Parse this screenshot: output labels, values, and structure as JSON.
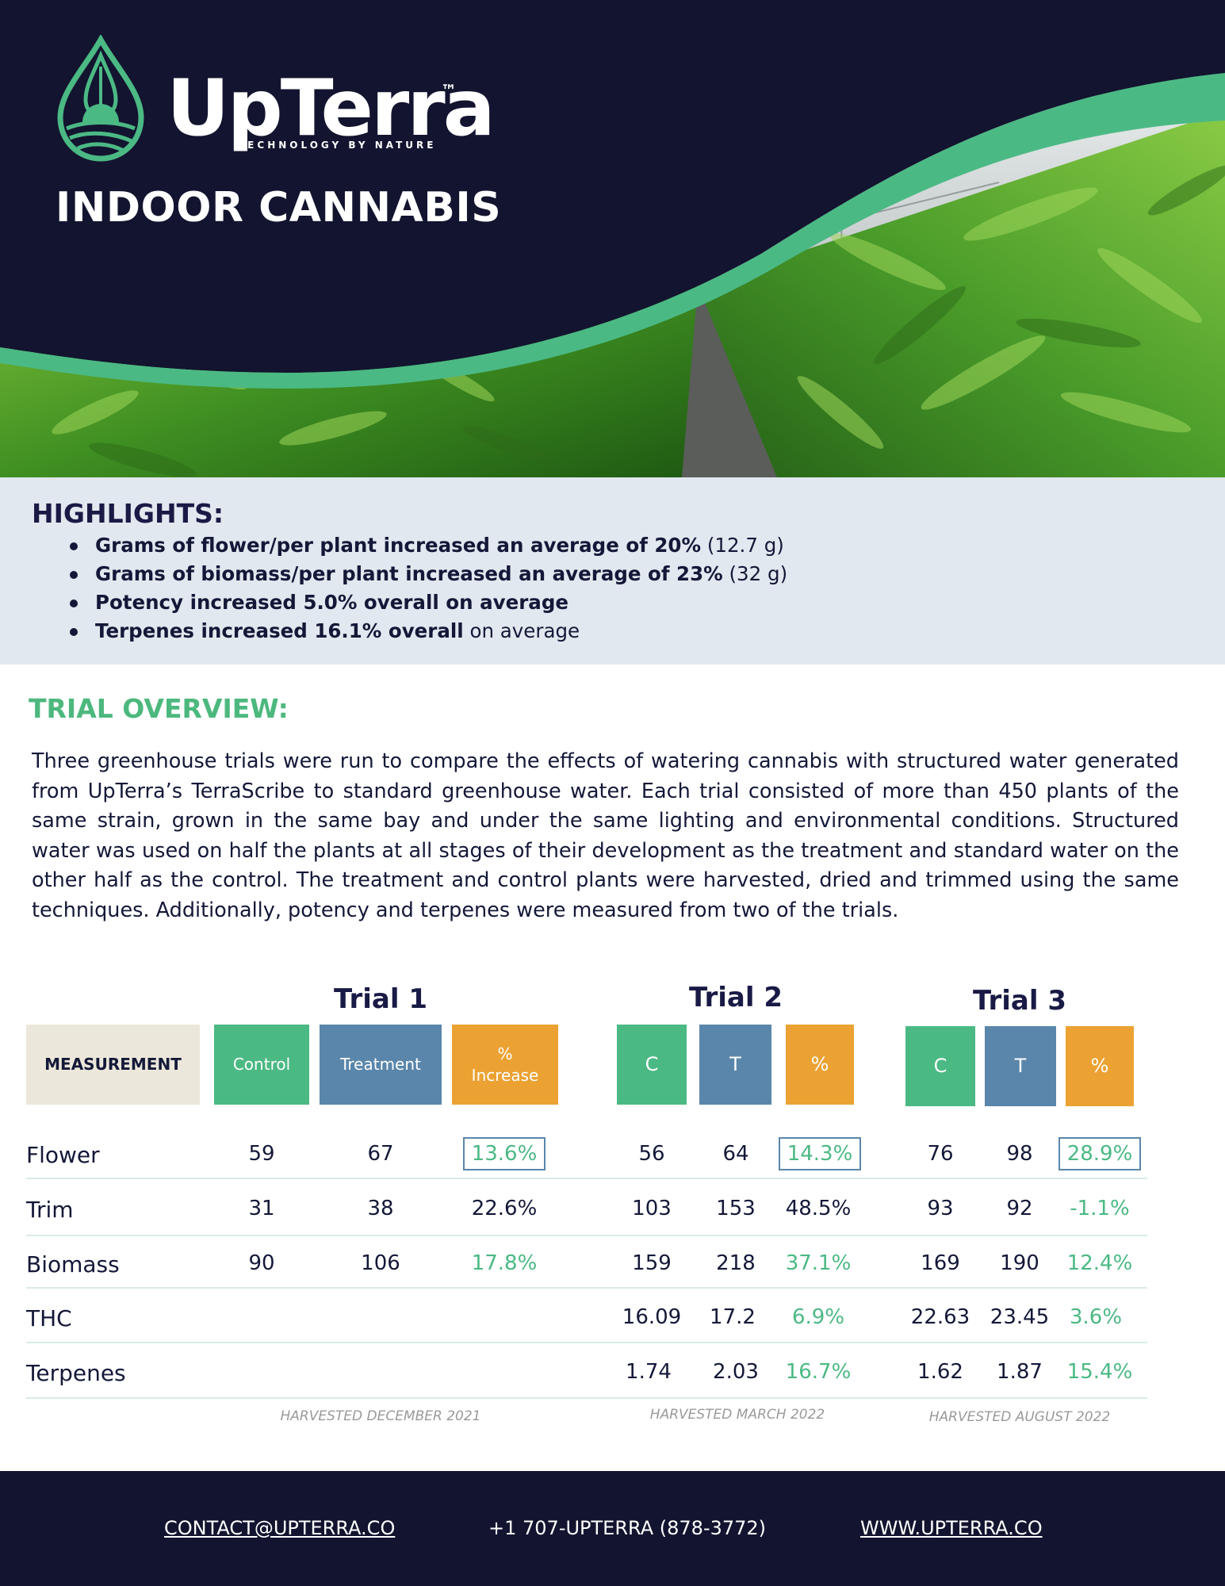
{
  "header": {
    "brand": "UpTerra",
    "trademark": "™",
    "tagline": "TECHNOLOGY BY NATURE",
    "title": "INDOOR CANNABIS"
  },
  "highlights": {
    "title": "HIGHLIGHTS:",
    "items": [
      {
        "bold": "Grams of flower/per plant increased an average of 20%",
        "rest": " (12.7 g)"
      },
      {
        "bold": "Grams of biomass/per plant increased an average of 23%",
        "rest": " (32 g)"
      },
      {
        "bold": "Potency increased 5.0% overall on average",
        "rest": ""
      },
      {
        "bold": "Terpenes increased 16.1% overall",
        "rest": " on average"
      }
    ]
  },
  "overview": {
    "title": "TRIAL OVERVIEW:",
    "text": "Three greenhouse trials were run to compare the effects of watering cannabis with structured water generated from UpTerra’s TerraScribe to standard greenhouse water.  Each trial consisted of more than 450 plants of the same strain, grown in the same bay and under the same lighting and environmental conditions.  Structured water was used on half the plants at all stages of their development as the treatment and standard water on the other half as the control.  The treatment and control plants were harvested, dried and trimmed using the same techniques.  Additionally, potency and terpenes were measured from two of the trials."
  },
  "table": {
    "measurement_label": "MEASUREMENT",
    "trials": [
      {
        "title": "Trial 1",
        "c": "Control",
        "t": "Treatment",
        "p": "% Increase",
        "harvest": "HARVESTED DECEMBER 2021"
      },
      {
        "title": "Trial 2",
        "c": "C",
        "t": "T",
        "p": "%",
        "harvest": "HARVESTED MARCH  2022"
      },
      {
        "title": "Trial 3",
        "c": "C",
        "t": "T",
        "p": "%",
        "harvest": "HARVESTED AUGUST 2022"
      }
    ],
    "rows": [
      {
        "label": "Flower",
        "values": [
          "59",
          "67",
          "13.6%",
          "56",
          "64",
          "14.3%",
          "76",
          "98",
          "28.9%"
        ]
      },
      {
        "label": "Trim",
        "values": [
          "31",
          "38",
          "22.6%",
          "103",
          "153",
          "48.5%",
          "93",
          "92",
          "-1.1%"
        ]
      },
      {
        "label": "Biomass",
        "values": [
          "90",
          "106",
          "17.8%",
          "159",
          "218",
          "37.1%",
          "169",
          "190",
          "12.4%"
        ]
      },
      {
        "label": "THC",
        "values": [
          "",
          "",
          "",
          "16.09",
          "17.2",
          "6.9%",
          "22.63",
          "23.45",
          "3.6%"
        ]
      },
      {
        "label": "Terpenes",
        "values": [
          "",
          "",
          "",
          "1.74",
          "2.03",
          "16.7%",
          "1.62",
          "1.87",
          "15.4%"
        ]
      }
    ]
  },
  "footer": {
    "email": "CONTACT@UPTERRA.CO",
    "phone": "+1 707-UPTERRA (878-3772)",
    "website": "WWW.UPTERRA.CO"
  },
  "colors": {
    "navy": "#13142f",
    "green": "#4bb984",
    "blue": "#5a86ab",
    "orange": "#eba233",
    "beige": "#ebe7da",
    "highlight_bg": "#e2e8ef"
  }
}
